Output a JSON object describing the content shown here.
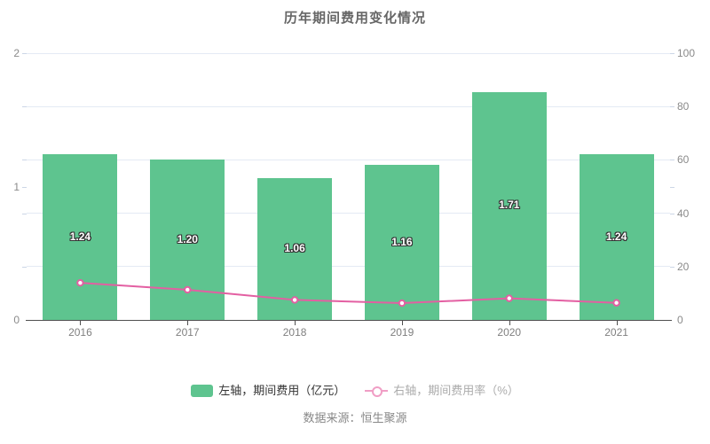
{
  "title": "历年期间费用变化情况",
  "source_note": "数据来源：恒生聚源",
  "legend": {
    "items": [
      {
        "label": "左轴，期间费用（亿元）",
        "icon": "bar",
        "icon_color": "#5ec48f",
        "text_color": "#333333"
      },
      {
        "label": "右轴，期间费用率（%）",
        "icon": "line",
        "icon_color": "#f09ec5",
        "text_color": "#ababab"
      }
    ]
  },
  "colors": {
    "bar": "#5ec48f",
    "line": "#e35fa2",
    "grid": "#e4eaf4",
    "axis_line": "#4f4f4f",
    "axis_label": "#8a8a8a",
    "title": "#666666"
  },
  "chart_data": {
    "type": "bar+line combo",
    "title": "历年期间费用变化情况",
    "categories": [
      "2016",
      "2017",
      "2018",
      "2019",
      "2020",
      "2021"
    ],
    "series": [
      {
        "name": "左轴，期间费用（亿元）",
        "type": "bar",
        "axis": "left",
        "color": "#5ec48f",
        "values": [
          1.24,
          1.2,
          1.06,
          1.16,
          1.71,
          1.24
        ],
        "data_labels": [
          "1.24",
          "1.20",
          "1.06",
          "1.16",
          "1.71",
          "1.24"
        ],
        "label_style": "white text with dark outline, centered inside bar"
      },
      {
        "name": "右轴，期间费用率（%）",
        "type": "line",
        "axis": "right",
        "color": "#e35fa2",
        "marker": "hollow-circle",
        "values": [
          13.9,
          11.3,
          7.5,
          6.3,
          8.1,
          6.4
        ],
        "values_note": "estimated from pixel positions, no data labels shown"
      }
    ],
    "left_axis": {
      "min": 0,
      "max": 2,
      "tick_labels": [
        "0",
        "1",
        "2"
      ]
    },
    "right_axis": {
      "min": 0,
      "max": 100,
      "tick_labels": [
        "0",
        "20",
        "40",
        "60",
        "80",
        "100"
      ]
    },
    "grid": true,
    "gridline_interval_right_axis": 20,
    "legend_position": "bottom",
    "xlabel": "",
    "ylabel_left": "期间费用（亿元）",
    "ylabel_right": "期间费用率（%）"
  }
}
